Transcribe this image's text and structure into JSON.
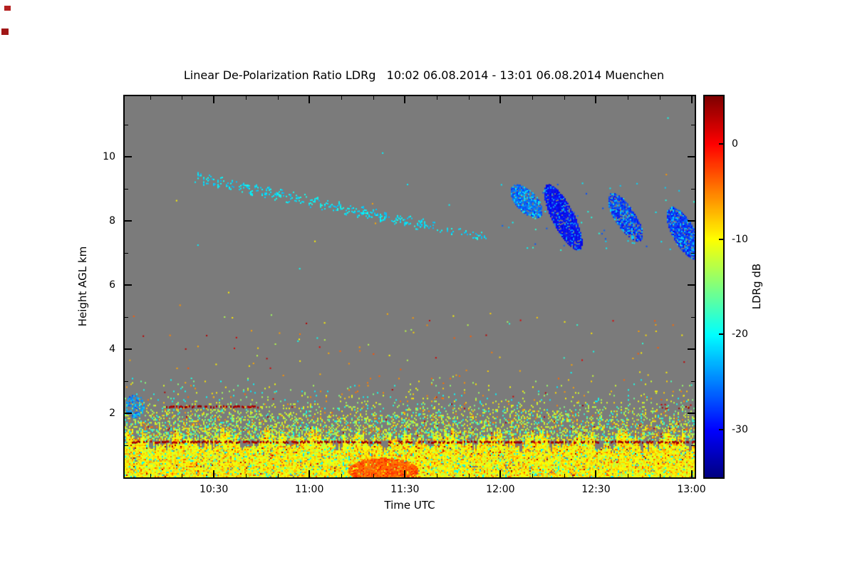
{
  "page": {
    "bg": "#ffffff"
  },
  "chart_data": {
    "type": "heatmap",
    "title": "Linear De-Polarization Ratio LDRg   10:02 06.08.2014 - 13:01 06.08.2014 Muenchen",
    "instrument_quantity": "Linear De-Polarization Ratio LDRg",
    "time_start": "10:02",
    "time_end": "13:01",
    "date": "06.08.2014",
    "station": "Muenchen",
    "xlabel": "Time UTC",
    "ylabel": "Height AGL km",
    "plot_bg": "#7b7b7b",
    "x_axis": {
      "start_min": 0,
      "end_min": 179,
      "ticks": [
        {
          "label": "10:30",
          "min": 28
        },
        {
          "label": "11:00",
          "min": 58
        },
        {
          "label": "11:30",
          "min": 88
        },
        {
          "label": "12:00",
          "min": 118
        },
        {
          "label": "12:30",
          "min": 148
        },
        {
          "label": "13:00",
          "min": 178
        }
      ],
      "minors_min": [
        8,
        18,
        38,
        48,
        68,
        78,
        98,
        108,
        128,
        138,
        158,
        168
      ]
    },
    "y_axis": {
      "min_km": 0,
      "max_km": 11.9,
      "ticks": [
        {
          "label": "2",
          "km": 2
        },
        {
          "label": "4",
          "km": 4
        },
        {
          "label": "6",
          "km": 6
        },
        {
          "label": "8",
          "km": 8
        },
        {
          "label": "10",
          "km": 10
        }
      ],
      "minors_km": [
        1,
        3,
        5,
        7,
        9,
        11
      ]
    },
    "colorbar": {
      "label": "LDRg dB",
      "vmin": -35,
      "vmax": 5,
      "colormap": "jet",
      "ticks": [
        {
          "label": "0",
          "v": 0
        },
        {
          "label": "-10",
          "v": -10
        },
        {
          "label": "-20",
          "v": -20
        },
        {
          "label": "-30",
          "v": -30
        }
      ]
    },
    "features": [
      {
        "kind": "fadeband",
        "t0": 0,
        "t1": 179,
        "h0": 1.15,
        "h1": 2.35,
        "d0": 0.5,
        "d1": 0.08,
        "vmean": -12,
        "vspread": 5,
        "outliers": [
          {
            "p": 0.18,
            "v": -19
          },
          {
            "p": 0.1,
            "v": -5
          },
          {
            "p": 0.02,
            "v": 3
          }
        ]
      },
      {
        "kind": "fadeband",
        "t0": 0,
        "t1": 179,
        "h0": 2.35,
        "h1": 3.1,
        "d0": 0.06,
        "d1": 0.012,
        "vmean": -12,
        "vspread": 6,
        "outliers": [
          {
            "p": 0.25,
            "v": -20
          },
          {
            "p": 0.2,
            "v": -5
          }
        ]
      },
      {
        "kind": "band",
        "t0": 0,
        "t1": 179,
        "h0": 0,
        "h1": 1.15,
        "ragged": 0.18,
        "density": 0.97,
        "vmean": -10,
        "vspread": 4.5,
        "outliers": [
          {
            "p": 0.05,
            "v": -20
          },
          {
            "p": 0.06,
            "v": -4
          },
          {
            "p": 0.012,
            "v": 3
          }
        ]
      },
      {
        "kind": "hline",
        "t0": 2,
        "t1": 179,
        "h": 1.1,
        "density": 0.6,
        "v": 3.5,
        "vspread": 2,
        "thick": 3
      },
      {
        "kind": "hline",
        "t0": 13,
        "t1": 42,
        "h": 2.2,
        "density": 0.55,
        "v": 3.5,
        "vspread": 2,
        "thick": 3
      },
      {
        "kind": "blob",
        "tc": 81,
        "hc": 0.2,
        "rt": 11,
        "rh": 0.38,
        "slope": 0,
        "density": 0.92,
        "vmean": -4,
        "vspread": 2,
        "outliers": [
          {
            "p": 0.2,
            "v": -1.5
          }
        ]
      },
      {
        "kind": "streak",
        "t0": 22,
        "t1": 95,
        "h0": 9.35,
        "h1": 7.85,
        "th": 0.26,
        "density": 0.32,
        "vmean": -21,
        "vspread": 2,
        "wiggle": 0.07
      },
      {
        "kind": "streak",
        "t0": 95,
        "t1": 114,
        "h0": 7.85,
        "h1": 7.45,
        "th": 0.18,
        "density": 0.2,
        "vmean": -21,
        "vspread": 2,
        "wiggle": 0.04
      },
      {
        "kind": "blob",
        "tc": 3,
        "hc": 2.2,
        "rt": 3,
        "rh": 0.35,
        "slope": 0,
        "density": 0.5,
        "vmean": -24,
        "vspread": 4,
        "outliers": []
      },
      {
        "kind": "dots",
        "t0": 0,
        "t1": 179,
        "h0": 2.4,
        "h1": 5.1,
        "n": 130,
        "values": [
          -6,
          -9,
          -19,
          -4,
          -13,
          2
        ]
      },
      {
        "kind": "dots",
        "t0": 0,
        "t1": 179,
        "h0": 5.2,
        "h1": 11.6,
        "n": 14,
        "values": [
          -9,
          -20,
          -6
        ]
      },
      {
        "kind": "dots",
        "t0": 118,
        "t1": 179,
        "h0": 7.0,
        "h1": 9.2,
        "n": 60,
        "values": [
          -21,
          -26,
          -19
        ]
      },
      {
        "kind": "blob",
        "tc": 126,
        "hc": 8.6,
        "rt": 5,
        "rh": 0.42,
        "slope": -0.06,
        "density": 0.8,
        "vmean": -26,
        "vspread": 3,
        "outliers": [
          {
            "p": 0.25,
            "v": -21
          }
        ]
      },
      {
        "kind": "blob",
        "tc": 137.5,
        "hc": 8.1,
        "rt": 6,
        "rh": 0.65,
        "slope": -0.13,
        "density": 0.93,
        "vmean": -30,
        "vspread": 2,
        "outliers": [
          {
            "p": 0.15,
            "v": -24
          }
        ]
      },
      {
        "kind": "blob",
        "tc": 157,
        "hc": 8.1,
        "rt": 5.5,
        "rh": 0.5,
        "slope": -0.1,
        "density": 0.8,
        "vmean": -28,
        "vspread": 3,
        "outliers": [
          {
            "p": 0.2,
            "v": -22
          }
        ]
      },
      {
        "kind": "blob",
        "tc": 175.5,
        "hc": 7.6,
        "rt": 5.5,
        "rh": 0.6,
        "slope": -0.1,
        "density": 0.85,
        "vmean": -28,
        "vspread": 3,
        "outliers": [
          {
            "p": 0.2,
            "v": -22
          }
        ]
      },
      {
        "kind": "dots",
        "t0": 168,
        "t1": 179,
        "h0": 2.1,
        "h1": 2.3,
        "n": 10,
        "values": [
          3
        ]
      }
    ]
  }
}
